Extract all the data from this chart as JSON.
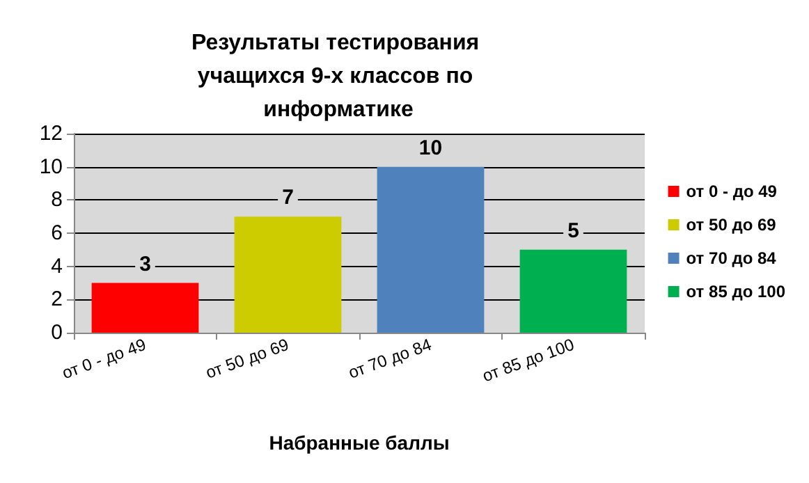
{
  "chart_data": {
    "type": "bar",
    "title": "Результаты тестирования учащихся 9-х классов по информатике",
    "xlabel": "Набранные баллы",
    "categories": [
      "от 0 - до 49",
      "от 50 до 69",
      "от 70 до 84",
      "от 85 до 100"
    ],
    "series": [
      {
        "name": "от 0 - до 49",
        "color": "#ff0000",
        "values": [
          3,
          null,
          null,
          null
        ]
      },
      {
        "name": "от 50 до 69",
        "color": "#cccc00",
        "values": [
          null,
          7,
          null,
          null
        ]
      },
      {
        "name": "от 70 до 84",
        "color": "#4f81bd",
        "values": [
          null,
          null,
          10,
          null
        ]
      },
      {
        "name": "от 85 до 100",
        "color": "#00b050",
        "values": [
          null,
          null,
          null,
          5
        ]
      }
    ],
    "stacked": true,
    "ylim": [
      0,
      12
    ],
    "yticks": [
      0,
      2,
      4,
      6,
      8,
      10,
      12
    ],
    "grid": "y",
    "legend": "right",
    "data_labels": true
  }
}
